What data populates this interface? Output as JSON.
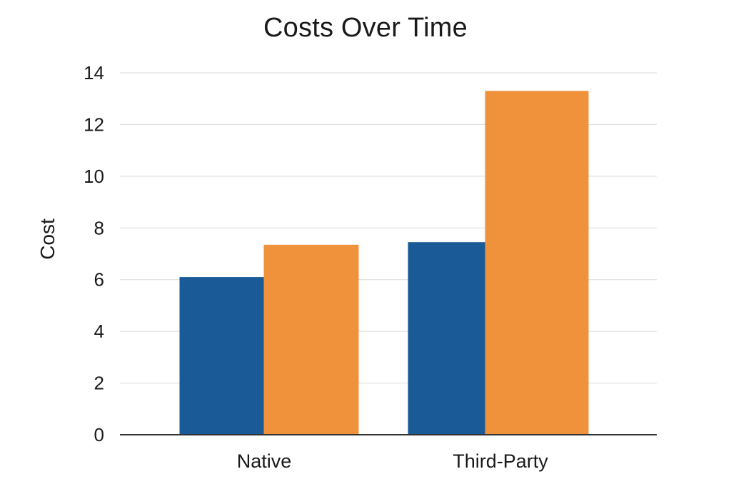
{
  "chart_data": {
    "type": "bar",
    "title": "Costs Over Time",
    "xlabel": "",
    "ylabel": "Cost",
    "categories": [
      "Native",
      "Third-Party"
    ],
    "series": [
      {
        "values": [
          6.1,
          7.45
        ],
        "color": "#1a5a96"
      },
      {
        "values": [
          7.35,
          13.3
        ],
        "color": "#f0913c"
      }
    ],
    "ylim": [
      0,
      14
    ],
    "yticks": [
      0,
      2,
      4,
      6,
      8,
      10,
      12,
      14
    ],
    "ytick_labels": [
      "0",
      "2",
      "4",
      "6",
      "8",
      "10",
      "12",
      "14"
    ],
    "grid": true,
    "legend": "none"
  }
}
